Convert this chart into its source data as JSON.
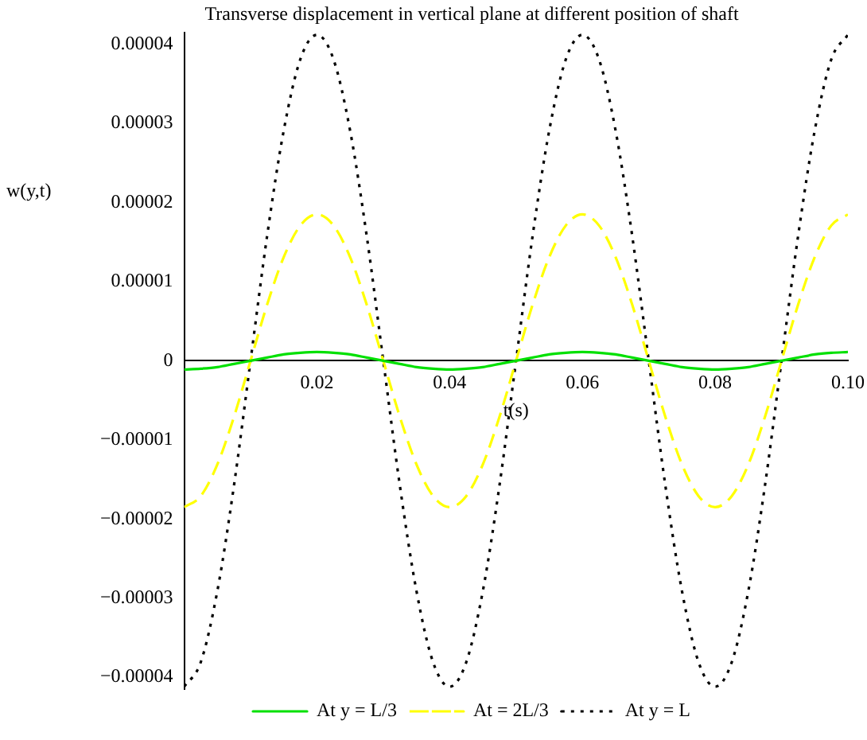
{
  "chart_data": {
    "type": "line",
    "title": "Transverse displacement in vertical plane at different position of shaft",
    "xlabel": "t(s)",
    "ylabel": "w(y,t)",
    "x": [
      0,
      0.0025,
      0.005,
      0.0075,
      0.01,
      0.0125,
      0.015,
      0.0175,
      0.02,
      0.0225,
      0.025,
      0.0275,
      0.03,
      0.0325,
      0.035,
      0.0375,
      0.04,
      0.0425,
      0.045,
      0.0475,
      0.05,
      0.0525,
      0.055,
      0.0575,
      0.06,
      0.0625,
      0.065,
      0.0675,
      0.07,
      0.0725,
      0.075,
      0.0775,
      0.08,
      0.0825,
      0.085,
      0.0875,
      0.09,
      0.0925,
      0.095,
      0.0975,
      0.1
    ],
    "series": [
      {
        "name": "At y = L/3",
        "color": "#00e000",
        "line_style": "solid",
        "values": [
          -1.1e-06,
          -1e-06,
          -8e-07,
          -4e-07,
          0,
          4e-07,
          8e-07,
          1e-06,
          1.1e-06,
          1e-06,
          8e-07,
          4e-07,
          0,
          -4e-07,
          -8e-07,
          -1e-06,
          -1.1e-06,
          -1e-06,
          -8e-07,
          -4e-07,
          0,
          4e-07,
          8e-07,
          1e-06,
          1.1e-06,
          1e-06,
          8e-07,
          4e-07,
          0,
          -4e-07,
          -8e-07,
          -1e-06,
          -1.1e-06,
          -1e-06,
          -8e-07,
          -4e-07,
          0,
          4e-07,
          8e-07,
          1e-06,
          1.1e-06
        ]
      },
      {
        "name": "At = 2L/3",
        "color": "#ffff00",
        "line_style": "dashed",
        "values": [
          -1.85e-05,
          -1.71e-05,
          -1.31e-05,
          -7.1e-06,
          0,
          7.1e-06,
          1.31e-05,
          1.71e-05,
          1.85e-05,
          1.71e-05,
          1.31e-05,
          7.1e-06,
          0,
          -7.1e-06,
          -1.31e-05,
          -1.71e-05,
          -1.85e-05,
          -1.71e-05,
          -1.31e-05,
          -7.1e-06,
          0,
          7.1e-06,
          1.31e-05,
          1.71e-05,
          1.85e-05,
          1.71e-05,
          1.31e-05,
          7.1e-06,
          0,
          -7.1e-06,
          -1.31e-05,
          -1.71e-05,
          -1.85e-05,
          -1.71e-05,
          -1.31e-05,
          -7.1e-06,
          0,
          7.1e-06,
          1.31e-05,
          1.71e-05,
          1.85e-05
        ]
      },
      {
        "name": "At y = L",
        "color": "#000000",
        "line_style": "dotted",
        "values": [
          -4.12e-05,
          -3.81e-05,
          -2.91e-05,
          -1.58e-05,
          0,
          1.58e-05,
          2.91e-05,
          3.81e-05,
          4.12e-05,
          3.81e-05,
          2.91e-05,
          1.58e-05,
          0,
          -1.58e-05,
          -2.91e-05,
          -3.81e-05,
          -4.12e-05,
          -3.81e-05,
          -2.91e-05,
          -1.58e-05,
          0,
          1.58e-05,
          2.91e-05,
          3.81e-05,
          4.12e-05,
          3.81e-05,
          2.91e-05,
          1.58e-05,
          0,
          -1.58e-05,
          -2.91e-05,
          -3.81e-05,
          -4.12e-05,
          -3.81e-05,
          -2.91e-05,
          -1.58e-05,
          0,
          1.58e-05,
          2.91e-05,
          3.81e-05,
          4.12e-05
        ]
      }
    ],
    "xlim": [
      0,
      0.1
    ],
    "xticks": [
      0.02,
      0.04,
      0.06,
      {
        "value": 0.1,
        "label": "0.10"
      },
      0.08
    ],
    "ylim": [
      -4.15e-05,
      4.15e-05
    ],
    "yticks": [
      {
        "value": -4e-05,
        "label": "−0.00004"
      },
      {
        "value": -3e-05,
        "label": "−0.00003"
      },
      {
        "value": -2e-05,
        "label": "−0.00002"
      },
      {
        "value": -1e-05,
        "label": "−0.00001"
      },
      0,
      {
        "value": 1e-05,
        "label": "0.00001"
      },
      {
        "value": 2e-05,
        "label": "0.00002"
      },
      {
        "value": 3e-05,
        "label": "0.00003"
      },
      {
        "value": 4e-05,
        "label": "0.00004"
      }
    ],
    "legend": "bottom"
  }
}
